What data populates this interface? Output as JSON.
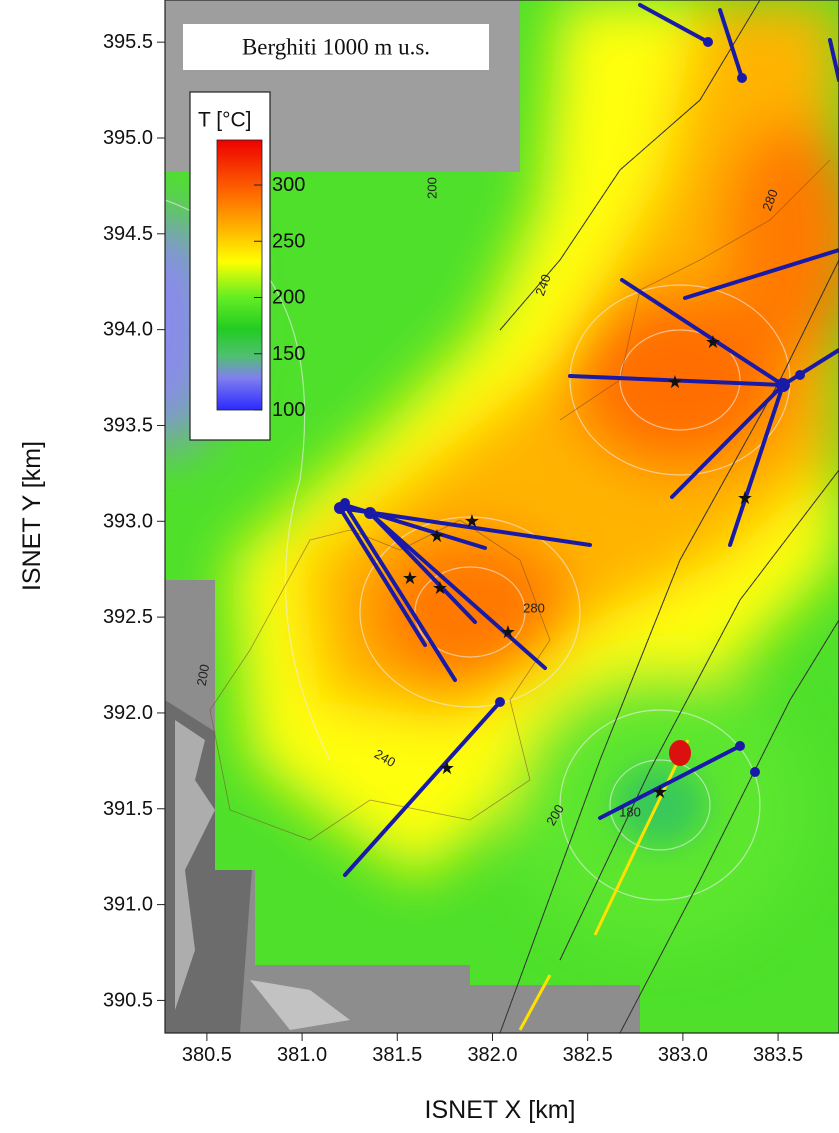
{
  "map": {
    "title": "Berghiti 1000 m u.s.",
    "x_axis": {
      "label": "ISNET X [km]",
      "lim": [
        380.28,
        383.82
      ],
      "ticks": [
        380.5,
        {
          "value": 381,
          "label": "381.0"
        },
        381.5,
        {
          "value": 382,
          "label": "382.0"
        },
        382.5,
        {
          "value": 383,
          "label": "383.0"
        },
        383.5
      ]
    },
    "y_axis": {
      "label": "ISNET Y [km]",
      "lim": [
        390.33,
        395.72
      ],
      "ticks": [
        395.5,
        {
          "value": 395,
          "label": "395.0"
        },
        394.5,
        {
          "value": 394,
          "label": "394.0"
        },
        393.5,
        {
          "value": 393,
          "label": "393.0"
        },
        392.5,
        {
          "value": 392,
          "label": "392.0"
        },
        391.5,
        {
          "value": 391,
          "label": "391.0"
        },
        390.5
      ]
    },
    "colorbar": {
      "label": "T [°C]",
      "lim": [
        100,
        340
      ],
      "ticks": [
        100,
        150,
        200,
        250,
        300
      ]
    },
    "contour_labels": [
      200,
      240,
      280,
      280,
      200,
      240,
      200,
      180
    ]
  }
}
